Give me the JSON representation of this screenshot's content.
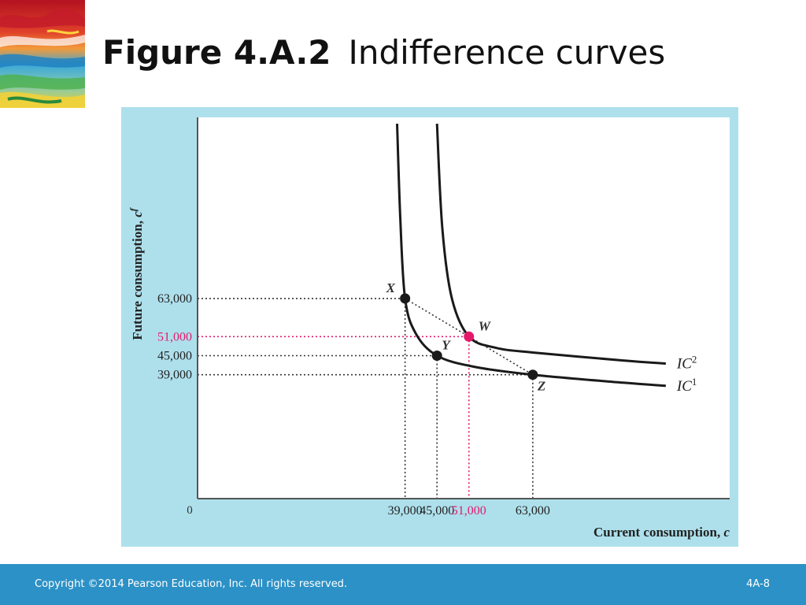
{
  "slide": {
    "figure_number": "Figure 4.A.2",
    "figure_title": "Indifference curves",
    "copyright": "Copyright ©2014 Pearson Education, Inc. All rights reserved.",
    "slide_number": "4A-8"
  },
  "colors": {
    "panel_background": "#aee0ec",
    "plot_background": "#ffffff",
    "curve": "#1a1a1a",
    "highlight": "#e5196b",
    "footer": "#2c91c6"
  },
  "chart_data": {
    "type": "line",
    "title": "Figure 4.A.2 Indifference curves",
    "xlabel_text": "Current consumption, ",
    "xlabel_var": "c",
    "ylabel_text": "Future consumption, ",
    "ylabel_var": "c",
    "ylabel_var_sup": "f",
    "origin_label": "0",
    "xlim": [
      0,
      100000
    ],
    "ylim": [
      0,
      120000
    ],
    "x_ticks": [
      {
        "value": 39000,
        "label": "39,000",
        "highlight": false
      },
      {
        "value": 45000,
        "label": "45,000",
        "highlight": false
      },
      {
        "value": 51000,
        "label": "51,000",
        "highlight": true
      },
      {
        "value": 63000,
        "label": "63,000",
        "highlight": false
      }
    ],
    "y_ticks": [
      {
        "value": 63000,
        "label": "63,000",
        "highlight": false
      },
      {
        "value": 51000,
        "label": "51,000",
        "highlight": true
      },
      {
        "value": 45000,
        "label": "45,000",
        "highlight": false
      },
      {
        "value": 39000,
        "label": "39,000",
        "highlight": false
      }
    ],
    "series": [
      {
        "name": "IC1",
        "label_base": "IC",
        "label_sup": "1",
        "points": [
          [
            37500,
            118000
          ],
          [
            38100,
            88000
          ],
          [
            39000,
            63000
          ],
          [
            41000,
            52000
          ],
          [
            45000,
            45000
          ],
          [
            52000,
            41500
          ],
          [
            63000,
            39000
          ],
          [
            80000,
            36500
          ],
          [
            88000,
            35500
          ]
        ]
      },
      {
        "name": "IC2",
        "label_base": "IC",
        "label_sup": "2",
        "points": [
          [
            45000,
            118000
          ],
          [
            46000,
            85000
          ],
          [
            47800,
            63000
          ],
          [
            51000,
            51000
          ],
          [
            56000,
            47500
          ],
          [
            63000,
            46000
          ],
          [
            80000,
            43500
          ],
          [
            88000,
            42500
          ]
        ]
      }
    ],
    "points": [
      {
        "name": "X",
        "x": 39000,
        "y": 63000,
        "highlight": false
      },
      {
        "name": "Y",
        "x": 45000,
        "y": 45000,
        "highlight": false
      },
      {
        "name": "W",
        "x": 51000,
        "y": 51000,
        "highlight": true
      },
      {
        "name": "Z",
        "x": 63000,
        "y": 39000,
        "highlight": false
      }
    ],
    "line_segments": [
      {
        "from": "X",
        "to": "Z",
        "style": "dotted"
      }
    ],
    "grid": false
  }
}
